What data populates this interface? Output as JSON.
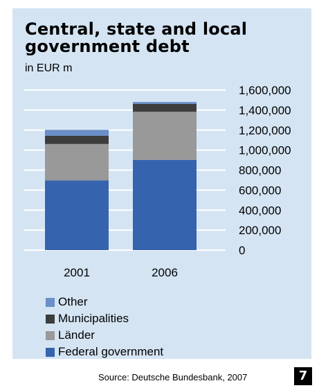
{
  "colors": {
    "panel_background": "#d4e4f3",
    "federal": "#3663ad",
    "laender": "#999999",
    "municipalities": "#3d3d3d",
    "other": "#6a8fc9",
    "gridline": "#ffffff"
  },
  "footer": {
    "source": "Source: Deutsche Bundesbank, 2007",
    "page_number": "7"
  },
  "chart_data": {
    "type": "bar",
    "stacked": true,
    "title": "Central, state and local government debt",
    "subtitle": "in EUR m",
    "categories": [
      "2001",
      "2006"
    ],
    "series": [
      {
        "name": "Federal government",
        "values": [
          697000,
          902000
        ],
        "color": "#3663ad"
      },
      {
        "name": "Länder",
        "values": [
          364000,
          481000
        ],
        "color": "#999999"
      },
      {
        "name": "Municipalities",
        "values": [
          83000,
          79000
        ],
        "color": "#3d3d3d"
      },
      {
        "name": "Other",
        "values": [
          59000,
          19000
        ],
        "color": "#6a8fc9"
      }
    ],
    "ylim": [
      0,
      1600000
    ],
    "yticks": [
      0,
      200000,
      400000,
      600000,
      800000,
      1000000,
      1200000,
      1400000,
      1600000
    ],
    "ytick_labels": [
      "0",
      "200,000",
      "400,000",
      "600,000",
      "800,000",
      "1,000,000",
      "1,200,000",
      "1,400,000",
      "1,600,000"
    ],
    "grid": true,
    "y_axis_position": "right",
    "legend": {
      "position": "bottom-left",
      "order": [
        "Other",
        "Municipalities",
        "Länder",
        "Federal government"
      ]
    }
  }
}
